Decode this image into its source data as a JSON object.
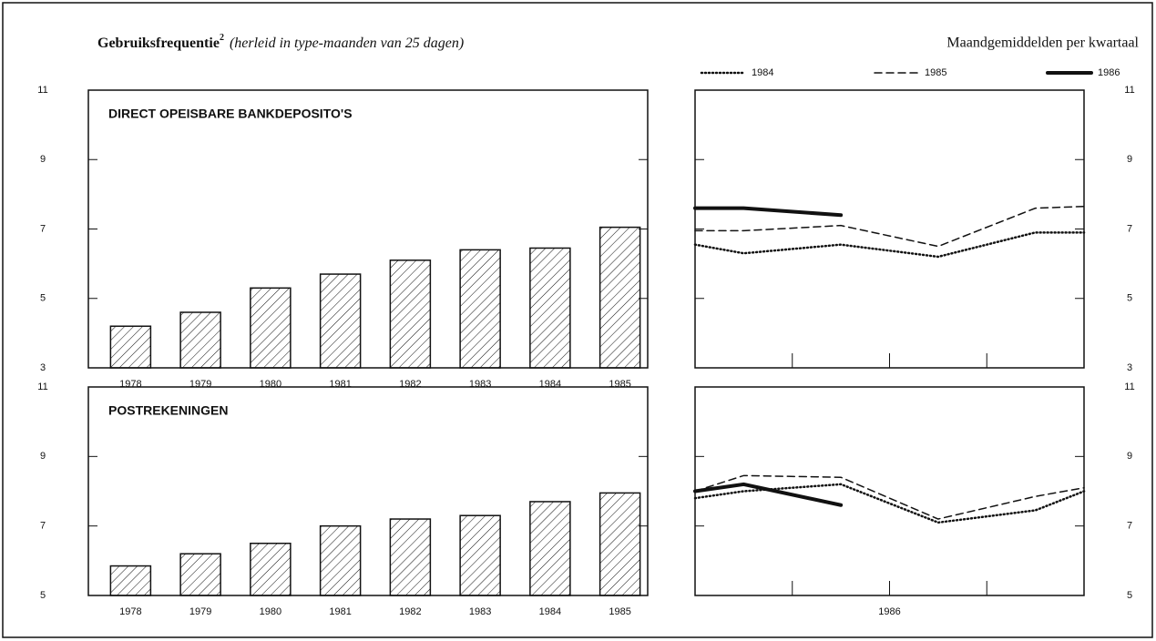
{
  "header": {
    "title": "Gebruiksfrequentie",
    "title_sup": "2",
    "subtitle": "(herleid in type-maanden van 25 dagen)",
    "right_title": "Maandgemiddelden per kwartaal"
  },
  "chart_data": [
    {
      "type": "bar",
      "title": "DIRECT OPEISBARE BANKDEPOSITO'S",
      "categories": [
        "1978",
        "1979",
        "1980",
        "1981",
        "1982",
        "1983",
        "1984",
        "1985"
      ],
      "values": [
        4.2,
        4.6,
        5.3,
        5.7,
        6.1,
        6.4,
        6.45,
        7.05
      ],
      "color": "#111111",
      "ylim": [
        3,
        11
      ],
      "yticks": [
        3,
        5,
        7,
        9,
        11
      ]
    },
    {
      "type": "line",
      "x": [
        0,
        0.5,
        1.5,
        2.5,
        3.5,
        4
      ],
      "xlim": [
        0,
        4
      ],
      "ylim": [
        3,
        11
      ],
      "yticks": [
        3,
        5,
        7,
        9,
        11
      ],
      "series": [
        {
          "name": "1984",
          "style": "dotted",
          "color": "#111111",
          "values": [
            6.55,
            6.3,
            6.55,
            6.2,
            6.9,
            6.9
          ]
        },
        {
          "name": "1985",
          "style": "dashed",
          "color": "#111111",
          "values": [
            6.95,
            6.95,
            7.1,
            6.5,
            7.6,
            7.65
          ]
        },
        {
          "name": "1986",
          "style": "solid",
          "color": "#111111",
          "values": [
            7.6,
            7.6,
            7.4,
            null,
            null,
            null
          ]
        }
      ]
    },
    {
      "type": "bar",
      "title": "POSTREKENINGEN",
      "categories": [
        "1978",
        "1979",
        "1980",
        "1981",
        "1982",
        "1983",
        "1984",
        "1985"
      ],
      "values": [
        5.85,
        6.2,
        6.5,
        7.0,
        7.2,
        7.3,
        7.7,
        7.95
      ],
      "color": "#111111",
      "ylim": [
        5,
        11
      ],
      "yticks": [
        5,
        7,
        9,
        11
      ]
    },
    {
      "type": "line",
      "x": [
        0,
        0.5,
        1.5,
        2.5,
        3.5,
        4
      ],
      "xlim": [
        0,
        4
      ],
      "ylim": [
        5,
        11
      ],
      "yticks": [
        5,
        7,
        9,
        11
      ],
      "x_label": "1986",
      "series": [
        {
          "style": "dotted",
          "color": "#111111",
          "values": [
            7.8,
            8.0,
            8.2,
            7.1,
            7.45,
            8.0
          ]
        },
        {
          "style": "dashed",
          "color": "#111111",
          "values": [
            8.0,
            8.45,
            8.4,
            7.2,
            7.85,
            8.1
          ]
        },
        {
          "style": "solid",
          "color": "#111111",
          "values": [
            8.0,
            8.2,
            7.6,
            null,
            null,
            null
          ]
        }
      ]
    }
  ]
}
